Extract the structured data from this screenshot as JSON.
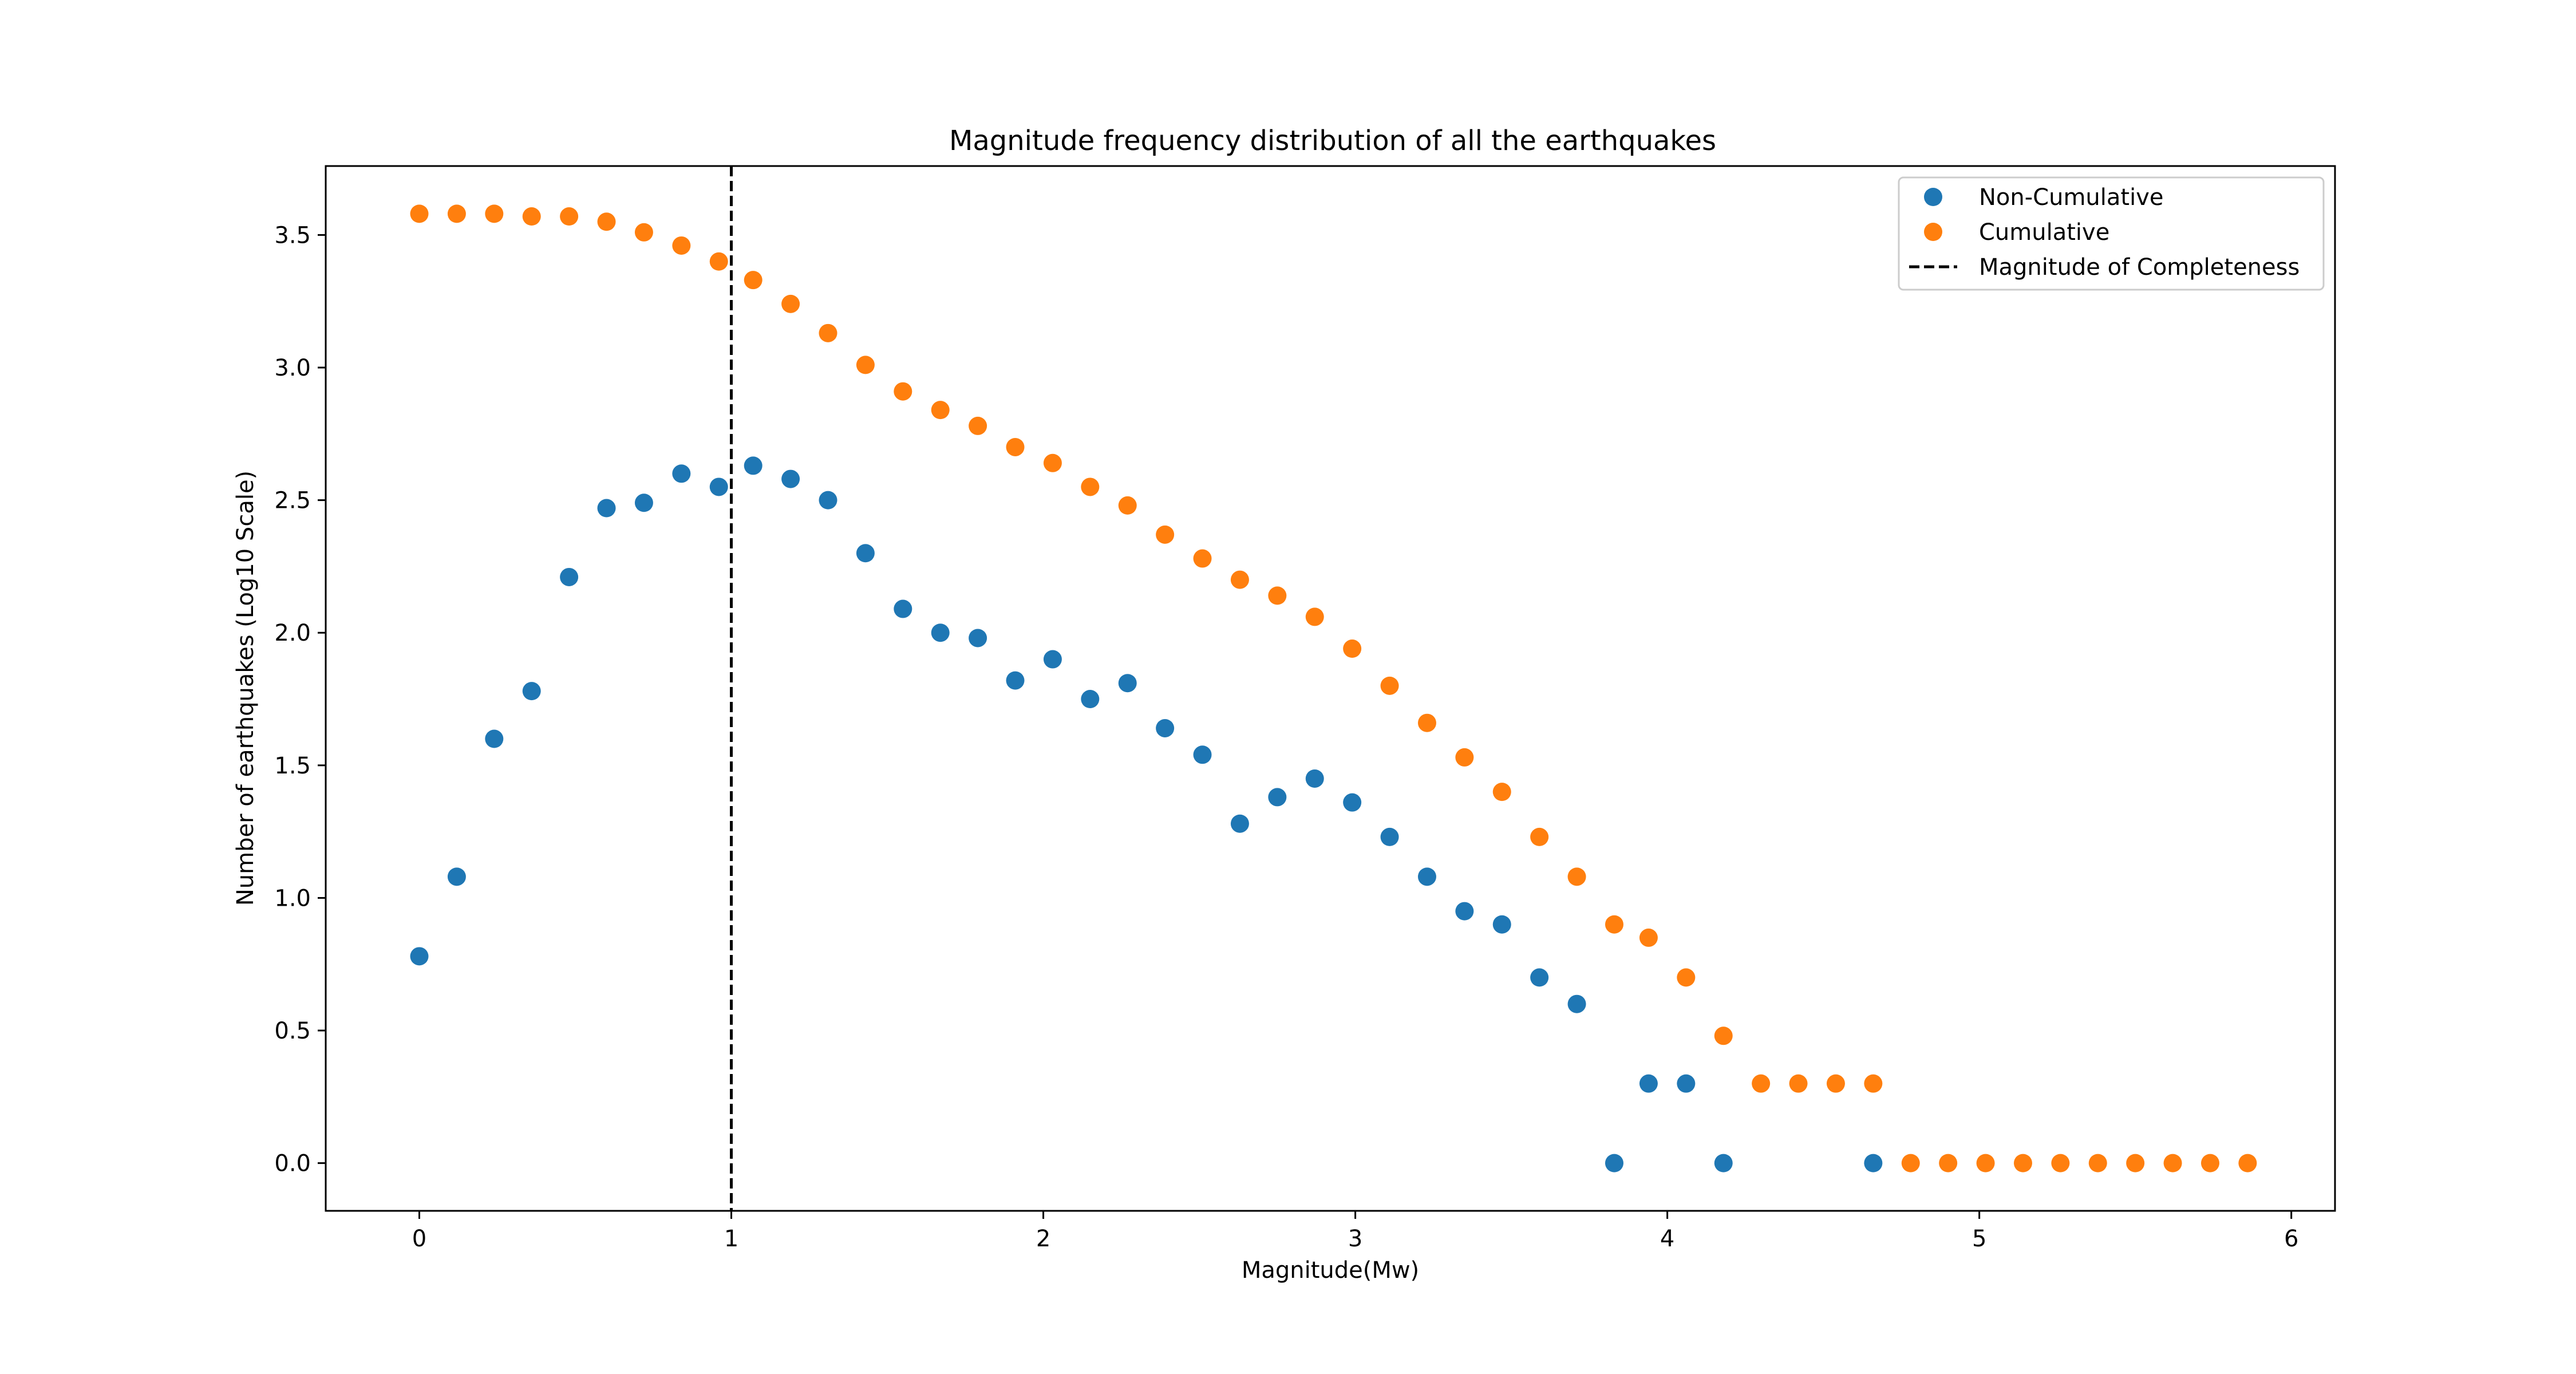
{
  "chart_data": {
    "type": "scatter",
    "title": "Magnitude frequency distribution of all the earthquakes",
    "xlabel": "Magnitude(Mw)",
    "ylabel": "Number of earthquakes (Log10 Scale)",
    "xlim": [
      -0.3,
      6.14
    ],
    "ylim": [
      -0.18,
      3.76
    ],
    "xticks": [
      0,
      1,
      2,
      3,
      4,
      5,
      6
    ],
    "xtick_labels": [
      "0",
      "1",
      "2",
      "3",
      "4",
      "5",
      "6"
    ],
    "yticks": [
      0.0,
      0.5,
      1.0,
      1.5,
      2.0,
      2.5,
      3.0,
      3.5
    ],
    "ytick_labels": [
      "0.0",
      "0.5",
      "1.0",
      "1.5",
      "2.0",
      "2.5",
      "3.0",
      "3.5"
    ],
    "grid": false,
    "legend_position": "top-right",
    "series": [
      {
        "name": "Non-Cumulative",
        "color": "#1f77b4",
        "marker": "circle",
        "points": [
          [
            0.0,
            0.78
          ],
          [
            0.12,
            1.08
          ],
          [
            0.24,
            1.6
          ],
          [
            0.36,
            1.78
          ],
          [
            0.48,
            2.21
          ],
          [
            0.6,
            2.47
          ],
          [
            0.72,
            2.49
          ],
          [
            0.84,
            2.6
          ],
          [
            0.96,
            2.55
          ],
          [
            1.07,
            2.63
          ],
          [
            1.19,
            2.58
          ],
          [
            1.31,
            2.5
          ],
          [
            1.43,
            2.3
          ],
          [
            1.55,
            2.09
          ],
          [
            1.67,
            2.0
          ],
          [
            1.79,
            1.98
          ],
          [
            1.91,
            1.82
          ],
          [
            2.03,
            1.9
          ],
          [
            2.15,
            1.75
          ],
          [
            2.27,
            1.81
          ],
          [
            2.39,
            1.64
          ],
          [
            2.51,
            1.54
          ],
          [
            2.63,
            1.28
          ],
          [
            2.75,
            1.38
          ],
          [
            2.87,
            1.45
          ],
          [
            2.99,
            1.36
          ],
          [
            3.11,
            1.23
          ],
          [
            3.23,
            1.08
          ],
          [
            3.35,
            0.95
          ],
          [
            3.47,
            0.9
          ],
          [
            3.59,
            0.7
          ],
          [
            3.71,
            0.6
          ],
          [
            3.83,
            0.0
          ],
          [
            3.94,
            0.3
          ],
          [
            4.06,
            0.3
          ],
          [
            4.18,
            0.0
          ],
          [
            4.66,
            0.0
          ]
        ]
      },
      {
        "name": "Cumulative",
        "color": "#ff7f0e",
        "marker": "circle",
        "points": [
          [
            0.0,
            3.58
          ],
          [
            0.12,
            3.58
          ],
          [
            0.24,
            3.58
          ],
          [
            0.36,
            3.57
          ],
          [
            0.48,
            3.57
          ],
          [
            0.6,
            3.55
          ],
          [
            0.72,
            3.51
          ],
          [
            0.84,
            3.46
          ],
          [
            0.96,
            3.4
          ],
          [
            1.07,
            3.33
          ],
          [
            1.19,
            3.24
          ],
          [
            1.31,
            3.13
          ],
          [
            1.43,
            3.01
          ],
          [
            1.55,
            2.91
          ],
          [
            1.67,
            2.84
          ],
          [
            1.79,
            2.78
          ],
          [
            1.91,
            2.7
          ],
          [
            2.03,
            2.64
          ],
          [
            2.15,
            2.55
          ],
          [
            2.27,
            2.48
          ],
          [
            2.39,
            2.37
          ],
          [
            2.51,
            2.28
          ],
          [
            2.63,
            2.2
          ],
          [
            2.75,
            2.14
          ],
          [
            2.87,
            2.06
          ],
          [
            2.99,
            1.94
          ],
          [
            3.11,
            1.8
          ],
          [
            3.23,
            1.66
          ],
          [
            3.35,
            1.53
          ],
          [
            3.47,
            1.4
          ],
          [
            3.59,
            1.23
          ],
          [
            3.71,
            1.08
          ],
          [
            3.83,
            0.9
          ],
          [
            3.94,
            0.85
          ],
          [
            4.06,
            0.7
          ],
          [
            4.18,
            0.48
          ],
          [
            4.3,
            0.3
          ],
          [
            4.42,
            0.3
          ],
          [
            4.54,
            0.3
          ],
          [
            4.66,
            0.3
          ],
          [
            4.78,
            0.0
          ],
          [
            4.9,
            0.0
          ],
          [
            5.02,
            0.0
          ],
          [
            5.14,
            0.0
          ],
          [
            5.26,
            0.0
          ],
          [
            5.38,
            0.0
          ],
          [
            5.5,
            0.0
          ],
          [
            5.62,
            0.0
          ],
          [
            5.74,
            0.0
          ],
          [
            5.86,
            0.0
          ]
        ]
      }
    ],
    "vlines": [
      {
        "name": "Magnitude of Completeness",
        "x": 1.0,
        "color": "#000000",
        "style": "dashed"
      }
    ]
  }
}
